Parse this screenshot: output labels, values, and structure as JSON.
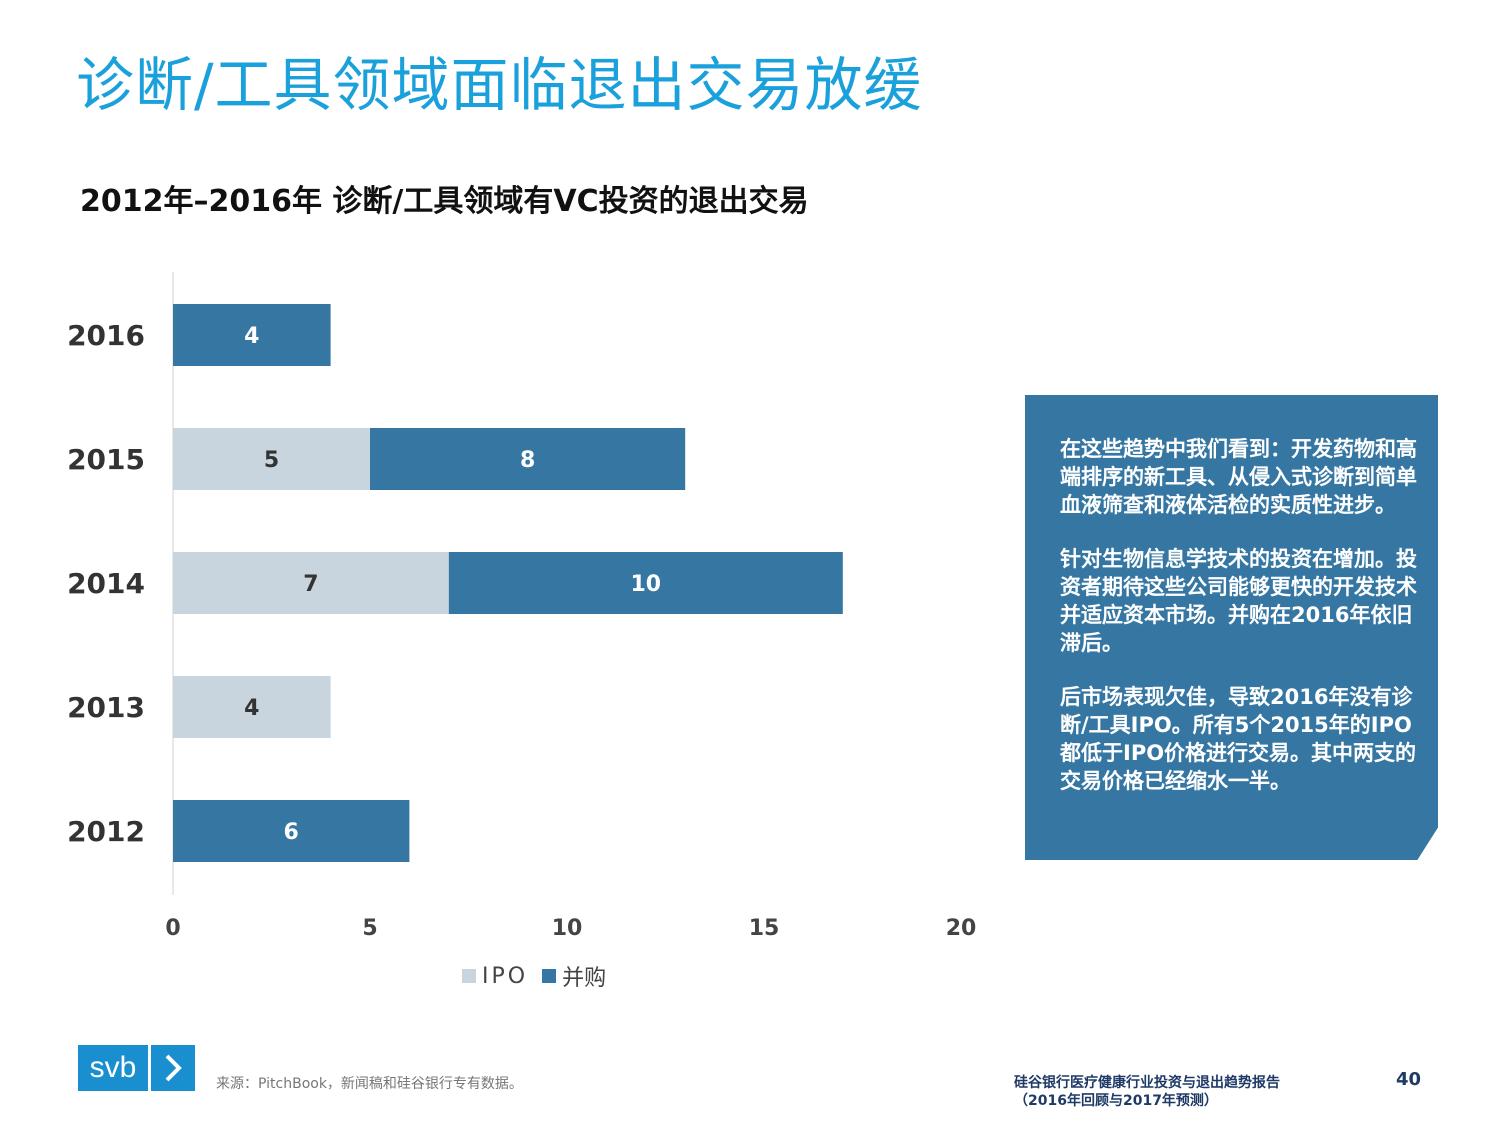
{
  "slide": {
    "title": "诊断/工具领域面临退出交易放缓"
  },
  "chart_data": {
    "type": "bar",
    "orientation": "horizontal",
    "stacked": true,
    "title": "2012年–2016年 诊断/工具领域有VC投资的退出交易",
    "categories": [
      "2016",
      "2015",
      "2014",
      "2013",
      "2012"
    ],
    "series": [
      {
        "name": "IPO",
        "color": "#c9d5de",
        "label_color": "#333333",
        "values": [
          0,
          5,
          7,
          4,
          0
        ]
      },
      {
        "name": "并购",
        "color": "#3577a2",
        "label_color": "#ffffff",
        "values": [
          4,
          8,
          10,
          0,
          6
        ]
      }
    ],
    "xlim": [
      0,
      20
    ],
    "xticks": [
      0,
      5,
      10,
      15,
      20
    ],
    "xlabel": "",
    "ylabel": "",
    "grid": false,
    "legend_position": "bottom"
  },
  "callout": {
    "paragraphs": [
      "在这些趋势中我们看到：开发药物和高端排序的新工具、从侵入式诊断到简单血液筛查和液体活检的实质性进步。",
      "针对生物信息学技术的投资在增加。投资者期待这些公司能够更快的开发技术并适应资本市场。并购在2016年依旧滞后。",
      "后市场表现欠佳，导致2016年没有诊断/工具IPO。所有5个2015年的IPO都低于IPO价格进行交易。其中两支的交易价格已经缩水一半。"
    ]
  },
  "footer": {
    "logo_text": "svb",
    "source": "来源：PitchBook，新闻稿和硅谷银行专有数据。",
    "report_line1": "硅谷银行医疗健康行业投资与退出趋势报告",
    "report_line2": "（2016年回顾与2017年预测）",
    "page_number": "40"
  }
}
